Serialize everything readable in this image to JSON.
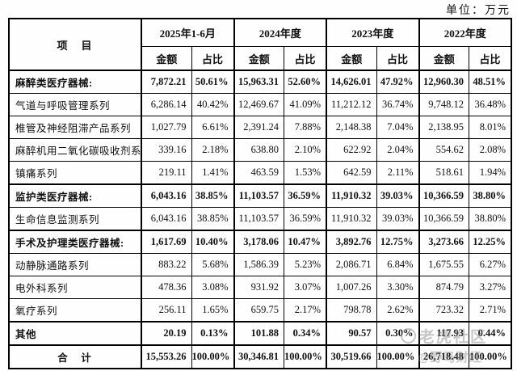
{
  "unit_label": "单位：万元",
  "table": {
    "item_header": "项　目",
    "periods": [
      "2025年1-6月",
      "2024年度",
      "2023年度",
      "2022年度"
    ],
    "amount_header": "金额",
    "ratio_header": "占比",
    "rows": [
      {
        "item": "麻醉类医疗器械:",
        "bold": true,
        "total": false,
        "values": [
          "7,872.21",
          "50.61%",
          "15,963.31",
          "52.60%",
          "14,626.01",
          "47.92%",
          "12,960.30",
          "48.51%"
        ]
      },
      {
        "item": "气道与呼吸管理系列",
        "bold": false,
        "total": false,
        "values": [
          "6,286.14",
          "40.42%",
          "12,469.67",
          "41.09%",
          "11,212.12",
          "36.74%",
          "9,748.12",
          "36.48%"
        ]
      },
      {
        "item": "椎管及神经阻滞产品系列",
        "bold": false,
        "total": false,
        "values": [
          "1,027.79",
          "6.61%",
          "2,391.24",
          "7.88%",
          "2,148.38",
          "7.04%",
          "2,138.95",
          "8.01%"
        ]
      },
      {
        "item": "麻醉机用二氧化碳吸收剂系列",
        "bold": false,
        "total": false,
        "values": [
          "339.16",
          "2.18%",
          "638.80",
          "2.10%",
          "622.92",
          "2.04%",
          "554.62",
          "2.08%"
        ]
      },
      {
        "item": "镇痛系列",
        "bold": false,
        "total": false,
        "values": [
          "219.11",
          "1.41%",
          "463.59",
          "1.53%",
          "642.59",
          "2.11%",
          "518.61",
          "1.94%"
        ]
      },
      {
        "item": "监护类医疗器械:",
        "bold": true,
        "total": false,
        "values": [
          "6,043.16",
          "38.85%",
          "11,103.57",
          "36.59%",
          "11,910.32",
          "39.03%",
          "10,366.59",
          "38.80%"
        ]
      },
      {
        "item": "生命信息监测系列",
        "bold": false,
        "total": false,
        "values": [
          "6,043.16",
          "38.85%",
          "11,103.57",
          "36.59%",
          "11,910.32",
          "39.03%",
          "10,366.59",
          "38.80%"
        ]
      },
      {
        "item": "手术及护理类医疗器械:",
        "bold": true,
        "total": false,
        "values": [
          "1,617.69",
          "10.40%",
          "3,178.06",
          "10.47%",
          "3,892.76",
          "12.75%",
          "3,273.66",
          "12.25%"
        ]
      },
      {
        "item": "动静脉通路系列",
        "bold": false,
        "total": false,
        "values": [
          "883.22",
          "5.68%",
          "1,586.39",
          "5.23%",
          "2,086.71",
          "6.84%",
          "1,675.55",
          "6.27%"
        ]
      },
      {
        "item": "电外科系列",
        "bold": false,
        "total": false,
        "values": [
          "478.36",
          "3.08%",
          "931.92",
          "3.07%",
          "1,007.26",
          "3.30%",
          "874.79",
          "3.27%"
        ]
      },
      {
        "item": "氧疗系列",
        "bold": false,
        "total": false,
        "values": [
          "256.11",
          "1.65%",
          "659.75",
          "2.17%",
          "798.78",
          "2.62%",
          "723.32",
          "2.71%"
        ]
      },
      {
        "item": "其他",
        "bold": true,
        "total": false,
        "values": [
          "20.19",
          "0.13%",
          "101.88",
          "0.34%",
          "90.57",
          "0.30%",
          "117.93",
          "0.44%"
        ]
      },
      {
        "item": "合　计",
        "bold": true,
        "total": true,
        "values": [
          "15,553.26",
          "100.00%",
          "30,346.81",
          "100.00%",
          "30,519.66",
          "100.00%",
          "26,718.48",
          "100.00%"
        ]
      }
    ]
  },
  "watermark": {
    "line1": "老虎社区",
    "line2": "@野马财经"
  }
}
